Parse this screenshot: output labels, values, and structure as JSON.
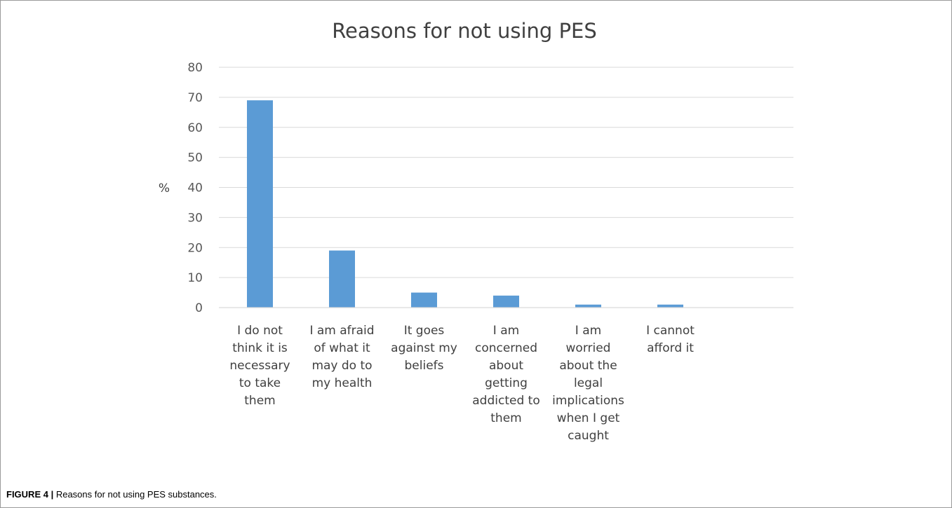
{
  "caption": {
    "label": "FIGURE 4 |",
    "text": "Reasons for not using PES substances."
  },
  "chart_data": {
    "type": "bar",
    "title": "Reasons for not using PES",
    "ylabel": "%",
    "xlabel": "",
    "ylim": [
      0,
      80
    ],
    "yticks": [
      0,
      10,
      20,
      30,
      40,
      50,
      60,
      70,
      80
    ],
    "grid": true,
    "bar_color": "#5b9bd5",
    "categories": [
      [
        "I do not",
        "think it is",
        "necessary",
        "to take",
        "them"
      ],
      [
        "I am afraid",
        "of what it",
        "may do to",
        "my health"
      ],
      [
        "It goes",
        "against my",
        "beliefs"
      ],
      [
        "I am",
        "concerned",
        "about",
        "getting",
        "addicted to",
        "them"
      ],
      [
        "I am",
        "worried",
        "about the",
        "legal",
        "implications",
        "when I get",
        "caught"
      ],
      [
        "I cannot",
        "afford it"
      ]
    ],
    "values": [
      69,
      19,
      5,
      4,
      1,
      1
    ]
  }
}
